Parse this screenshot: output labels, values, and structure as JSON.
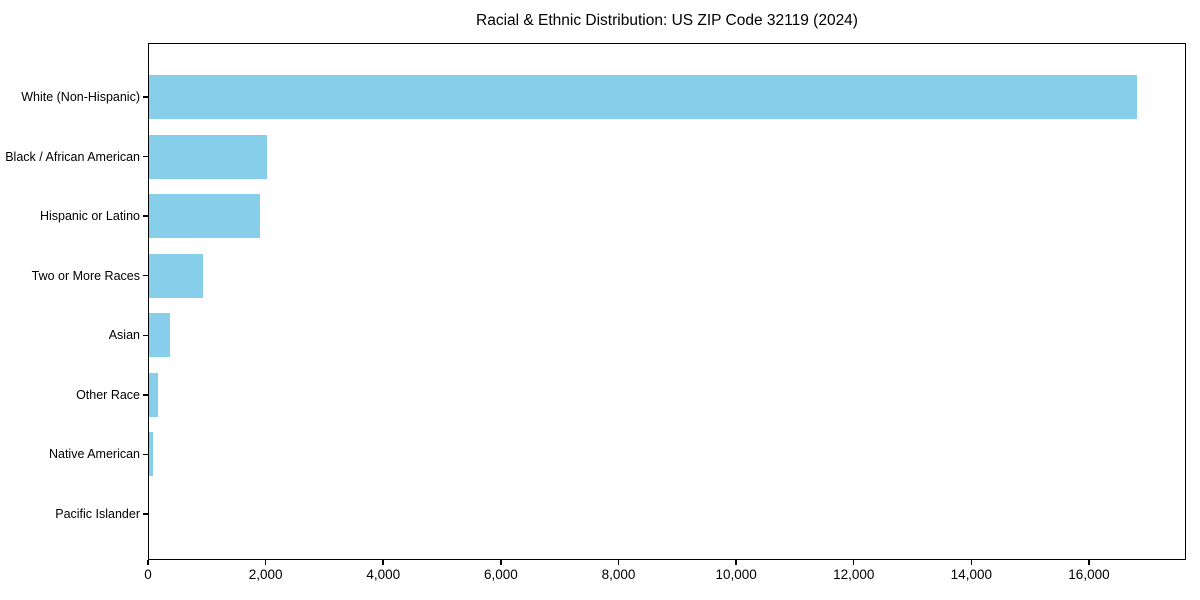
{
  "chart_data": {
    "type": "bar",
    "orientation": "horizontal",
    "title": "Racial & Ethnic Distribution: US ZIP Code 32119 (2024)",
    "categories": [
      "White (Non-Hispanic)",
      "Black / African American",
      "Hispanic or Latino",
      "Two or More Races",
      "Asian",
      "Other Race",
      "Native American",
      "Pacific Islander"
    ],
    "values": [
      16820,
      2025,
      1910,
      935,
      375,
      165,
      80,
      0
    ],
    "xlabel": "",
    "ylabel": "",
    "xlim": [
      0,
      17650
    ],
    "xticks": [
      0,
      2000,
      4000,
      6000,
      8000,
      10000,
      12000,
      14000,
      16000
    ],
    "xtick_labels": [
      "0",
      "2,000",
      "4,000",
      "6,000",
      "8,000",
      "10,000",
      "12,000",
      "14,000",
      "16,000"
    ],
    "bar_color": "#87CEEB",
    "axis_color": "#000000",
    "background_color": "#ffffff",
    "grid": false,
    "legend": "none"
  }
}
